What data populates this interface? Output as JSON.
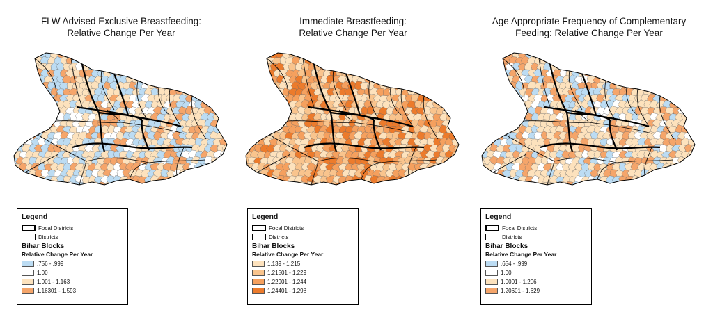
{
  "panels": [
    {
      "title_line1": "FLW Advised Exclusive Breastfeeding:",
      "title_line2": "Relative Change Per Year",
      "palette": [
        "#bcdcf3",
        "#ffffff",
        "#fde2bd",
        "#f5a56a"
      ],
      "weights": [
        0.3,
        0.12,
        0.38,
        0.2
      ],
      "classes": [
        ".756 - .999",
        "1.00",
        "1.001 - 1.163",
        "1.16301 - 1.593"
      ]
    },
    {
      "title_line1": "Immediate Breastfeeding:",
      "title_line2": "Relative Change Per Year",
      "palette": [
        "#fde2bd",
        "#f9c48d",
        "#f5a05e",
        "#ec7b2c"
      ],
      "weights": [
        0.3,
        0.24,
        0.26,
        0.2
      ],
      "classes": [
        "1.139 - 1.215",
        "1.21501 - 1.229",
        "1.22901 - 1.244",
        "1.24401 - 1.298"
      ]
    },
    {
      "title_line1": "Age Appropriate Frequency of Complementary",
      "title_line2": "Feeding: Relative Change Per Year",
      "palette": [
        "#bcdcf3",
        "#ffffff",
        "#fde2bd",
        "#f5a56a"
      ],
      "weights": [
        0.18,
        0.12,
        0.45,
        0.25
      ],
      "classes": [
        ".654 - .999",
        "1.00",
        "1.0001 - 1.206",
        "1.20601 - 1.629"
      ]
    }
  ],
  "legend": {
    "title": "Legend",
    "focal": "Focal Districts",
    "districts": "Districts",
    "blocks": "Bihar Blocks",
    "rcpy": "Relative Change Per Year"
  }
}
